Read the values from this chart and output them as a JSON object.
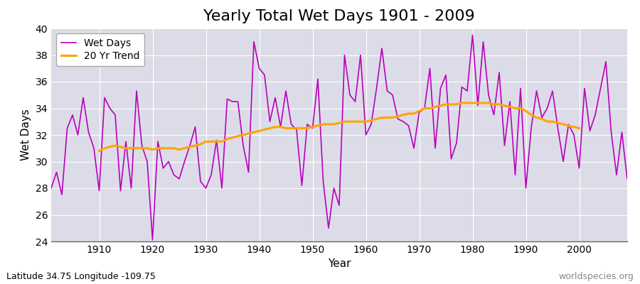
{
  "title": "Yearly Total Wet Days 1901 - 2009",
  "xlabel": "Year",
  "ylabel": "Wet Days",
  "subtitle": "Latitude 34.75 Longitude -109.75",
  "watermark": "worldspecies.org",
  "years": [
    1901,
    1902,
    1903,
    1904,
    1905,
    1906,
    1907,
    1908,
    1909,
    1910,
    1911,
    1912,
    1913,
    1914,
    1915,
    1916,
    1917,
    1918,
    1919,
    1920,
    1921,
    1922,
    1923,
    1924,
    1925,
    1926,
    1927,
    1928,
    1929,
    1930,
    1931,
    1932,
    1933,
    1934,
    1935,
    1936,
    1937,
    1938,
    1939,
    1940,
    1941,
    1942,
    1943,
    1944,
    1945,
    1946,
    1947,
    1948,
    1949,
    1950,
    1951,
    1952,
    1953,
    1954,
    1955,
    1956,
    1957,
    1958,
    1959,
    1960,
    1961,
    1962,
    1963,
    1964,
    1965,
    1966,
    1967,
    1968,
    1969,
    1970,
    1971,
    1972,
    1973,
    1974,
    1975,
    1976,
    1977,
    1978,
    1979,
    1980,
    1981,
    1982,
    1983,
    1984,
    1985,
    1986,
    1987,
    1988,
    1989,
    1990,
    1991,
    1992,
    1993,
    1994,
    1995,
    1996,
    1997,
    1998,
    1999,
    2000,
    2001,
    2002,
    2003,
    2004,
    2005,
    2006,
    2007,
    2008,
    2009
  ],
  "wet_days": [
    28,
    29.2,
    27.5,
    32.5,
    33.5,
    32.0,
    34.8,
    32.2,
    31.0,
    27.8,
    34.8,
    34.0,
    33.5,
    27.8,
    31.5,
    28.0,
    35.3,
    31.2,
    30.0,
    24.1,
    31.5,
    29.5,
    30.0,
    29.0,
    28.7,
    30.0,
    31.2,
    32.6,
    28.5,
    28.0,
    29.0,
    31.6,
    28.0,
    34.7,
    34.5,
    34.5,
    31.2,
    29.2,
    39.0,
    37.0,
    36.5,
    33.0,
    34.8,
    32.6,
    35.3,
    32.8,
    32.4,
    28.2,
    32.8,
    32.5,
    36.2,
    28.5,
    25.0,
    28.0,
    26.7,
    38.0,
    35.0,
    34.5,
    38.0,
    32.0,
    32.8,
    35.5,
    38.5,
    35.3,
    35.0,
    33.2,
    33.0,
    32.7,
    31.0,
    33.7,
    34.0,
    37.0,
    31.0,
    35.5,
    36.5,
    30.2,
    31.4,
    35.6,
    35.3,
    39.5,
    34.2,
    39.0,
    35.0,
    33.5,
    36.7,
    31.2,
    34.5,
    29.0,
    35.5,
    28.0,
    32.5,
    35.3,
    33.3,
    34.0,
    35.3,
    32.5,
    30.0,
    32.8,
    32.0,
    29.5,
    35.5,
    32.3,
    33.5,
    35.5,
    37.5,
    32.2,
    29.0,
    32.2,
    28.7
  ],
  "trend": [
    null,
    null,
    null,
    null,
    null,
    null,
    null,
    null,
    null,
    30.8,
    31.0,
    31.1,
    31.2,
    31.1,
    31.0,
    31.0,
    31.0,
    31.0,
    31.0,
    30.9,
    31.0,
    31.0,
    31.0,
    31.0,
    30.9,
    31.0,
    31.1,
    31.2,
    31.3,
    31.5,
    31.5,
    31.5,
    31.5,
    31.7,
    31.8,
    31.9,
    32.0,
    32.1,
    32.2,
    32.3,
    32.4,
    32.5,
    32.6,
    32.6,
    32.5,
    32.5,
    32.5,
    32.5,
    32.5,
    32.6,
    32.7,
    32.8,
    32.8,
    32.8,
    32.9,
    33.0,
    33.0,
    33.0,
    33.0,
    33.0,
    33.1,
    33.2,
    33.3,
    33.3,
    33.3,
    33.4,
    33.5,
    33.6,
    33.6,
    33.8,
    34.0,
    34.0,
    34.1,
    34.2,
    34.3,
    34.3,
    34.3,
    34.4,
    34.4,
    34.4,
    34.4,
    34.4,
    34.4,
    34.3,
    34.3,
    34.2,
    34.1,
    34.0,
    34.0,
    33.8,
    33.5,
    33.3,
    33.2,
    33.0,
    33.0,
    32.9,
    32.8,
    32.7,
    32.6,
    32.5,
    null,
    null,
    null,
    null,
    null,
    null,
    null,
    null,
    null
  ],
  "wet_days_color": "#BB00BB",
  "trend_color": "#FFA500",
  "figure_bg_color": "#FFFFFF",
  "plot_bg_color": "#DCDCE8",
  "grid_color": "#FFFFFF",
  "bottom_border_color": "#888888",
  "ylim": [
    24,
    40
  ],
  "xlim": [
    1901,
    2009
  ],
  "yticks": [
    24,
    26,
    28,
    30,
    32,
    34,
    36,
    38,
    40
  ],
  "xticks": [
    1910,
    1920,
    1930,
    1940,
    1950,
    1960,
    1970,
    1980,
    1990,
    2000
  ],
  "title_fontsize": 16,
  "axis_label_fontsize": 11,
  "tick_fontsize": 10,
  "legend_fontsize": 10,
  "subtitle_fontsize": 9,
  "watermark_fontsize": 9
}
